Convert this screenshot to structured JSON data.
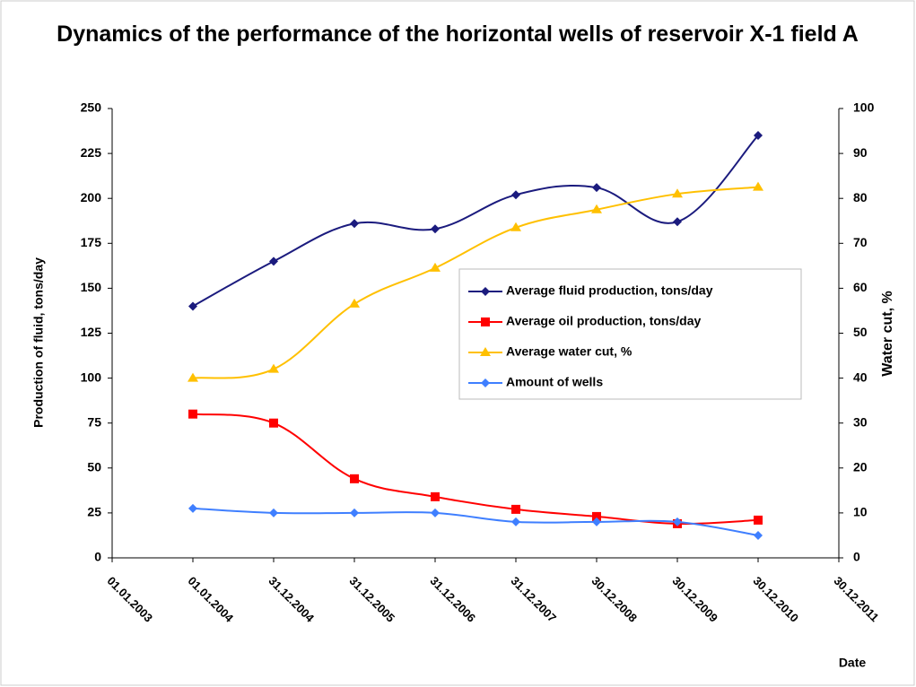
{
  "chart_data": {
    "type": "line",
    "title": "Dynamics of the performance of the horizontal wells of reservoir X-1 field A",
    "x_label": "Date",
    "y_label": "Production of fluid, tons/day",
    "y2_label": "Water cut, %",
    "categories": [
      "01.01.2003",
      "01.01.2004",
      "31.12.2004",
      "31.12.2005",
      "31.12.2006",
      "31.12.2007",
      "30.12.2008",
      "30.12.2009",
      "30.12.2010",
      "30.12.2011"
    ],
    "ylim": [
      0,
      250
    ],
    "yticks": [
      0,
      25,
      50,
      75,
      100,
      125,
      150,
      175,
      200,
      225,
      250
    ],
    "y2lim": [
      0,
      100
    ],
    "y2ticks": [
      0,
      10,
      20,
      30,
      40,
      50,
      60,
      70,
      80,
      90,
      100
    ],
    "legend": "center-right",
    "series": [
      {
        "name": "Average fluid production, tons/day",
        "color": "#1b1b7e",
        "marker": "diamond",
        "values": [
          null,
          140,
          165,
          186,
          183,
          202,
          206,
          187,
          235,
          null
        ]
      },
      {
        "name": "Average oil production, tons/day",
        "color": "#ff0000",
        "marker": "square",
        "values": [
          null,
          80,
          75,
          44,
          34,
          27,
          23,
          19,
          21,
          null
        ]
      },
      {
        "name": "Average water cut, %",
        "color": "#ffc000",
        "marker": "triangle",
        "axis": "y2",
        "values": [
          null,
          40,
          42,
          56.5,
          64.5,
          73.5,
          77.5,
          81,
          82.5,
          null
        ]
      },
      {
        "name": "Amount of wells",
        "color": "#3f7fff",
        "marker": "diamond",
        "axis": "y2",
        "values": [
          null,
          11,
          10,
          10,
          10,
          8,
          8,
          8,
          5,
          null
        ]
      }
    ]
  }
}
